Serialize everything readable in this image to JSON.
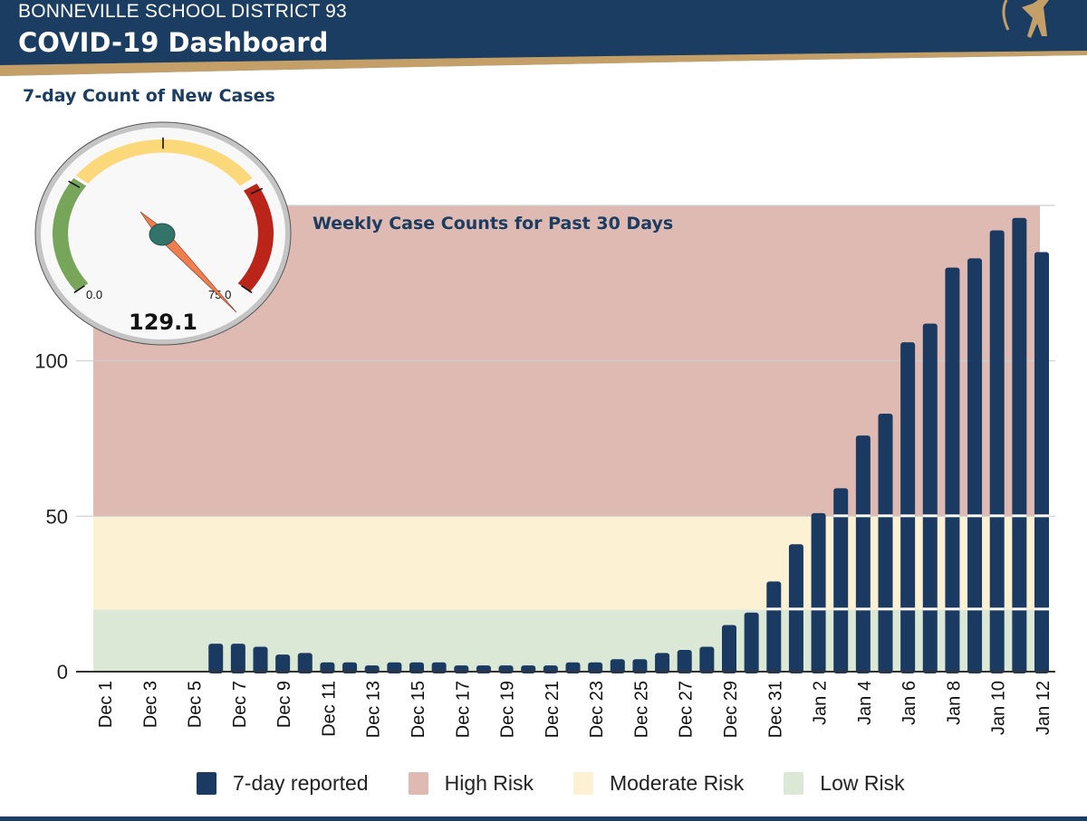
{
  "header": {
    "district": "BONNEVILLE SCHOOL DISTRICT 93",
    "title": "COVID-19 Dashboard",
    "logo_icon": "person-star-logo-icon"
  },
  "section_title": "7-day Count of New Cases",
  "colors": {
    "header_bg": "#1b3d61",
    "gold": "#c4a068",
    "bar": "#1b3a62",
    "high_risk": "#dfbab2",
    "moderate_risk": "#fcf1d2",
    "low_risk": "#dce8d6",
    "gauge_green": "#77a65a",
    "gauge_yellow": "#fbd97a",
    "gauge_red": "#bb2419",
    "needle": "#ef7d4f",
    "hub": "#32736a"
  },
  "gauge": {
    "value": 129.1,
    "value_label": "129.1",
    "min_label": "0.0",
    "max_label": "75.0"
  },
  "chart_data": {
    "type": "bar",
    "title": "Weekly Case Counts for Past 30 Days",
    "xlabel": "",
    "ylabel": "",
    "ylim": [
      0,
      150
    ],
    "yticks": [
      0,
      50,
      100
    ],
    "grid": true,
    "categories": [
      "Dec 1",
      "Dec 2",
      "Dec 3",
      "Dec 4",
      "Dec 5",
      "Dec 6",
      "Dec 7",
      "Dec 8",
      "Dec 9",
      "Dec 10",
      "Dec 11",
      "Dec 12",
      "Dec 13",
      "Dec 14",
      "Dec 15",
      "Dec 16",
      "Dec 17",
      "Dec 18",
      "Dec 19",
      "Dec 20",
      "Dec 21",
      "Dec 22",
      "Dec 23",
      "Dec 24",
      "Dec 25",
      "Dec 26",
      "Dec 27",
      "Dec 28",
      "Dec 29",
      "Dec 30",
      "Dec 31",
      "Jan 1",
      "Jan 2",
      "Jan 3",
      "Jan 4",
      "Jan 5",
      "Jan 6",
      "Jan 7",
      "Jan 8",
      "Jan 9",
      "Jan 10",
      "Jan 11",
      "Jan 12"
    ],
    "tick_labels": [
      "Dec 1",
      "Dec 3",
      "Dec 5",
      "Dec 7",
      "Dec 9",
      "Dec 11",
      "Dec 13",
      "Dec 15",
      "Dec 17",
      "Dec 19",
      "Dec 21",
      "Dec 23",
      "Dec 25",
      "Dec 27",
      "Dec 29",
      "Dec 31",
      "Jan 2",
      "Jan 4",
      "Jan 6",
      "Jan 8",
      "Jan 10",
      "Jan 12"
    ],
    "series": [
      {
        "name": "7-day reported",
        "values": [
          0,
          0,
          0,
          0,
          0,
          9,
          9,
          8,
          5.5,
          6,
          3,
          3,
          2,
          3,
          3,
          3,
          2,
          2,
          2,
          2,
          2,
          3,
          3,
          4,
          4,
          6,
          7,
          8,
          15,
          19,
          29,
          41,
          51,
          59,
          76,
          83,
          106,
          112,
          130,
          133,
          142,
          146,
          135
        ]
      }
    ],
    "bands": [
      {
        "name": "Low Risk",
        "from": 0,
        "to": 20
      },
      {
        "name": "Moderate Risk",
        "from": 20,
        "to": 50
      },
      {
        "name": "High Risk",
        "from": 50,
        "to": 150
      }
    ],
    "legend": [
      "7-day reported",
      "High Risk",
      "Moderate Risk",
      "Low Risk"
    ],
    "legend_position": "bottom"
  }
}
